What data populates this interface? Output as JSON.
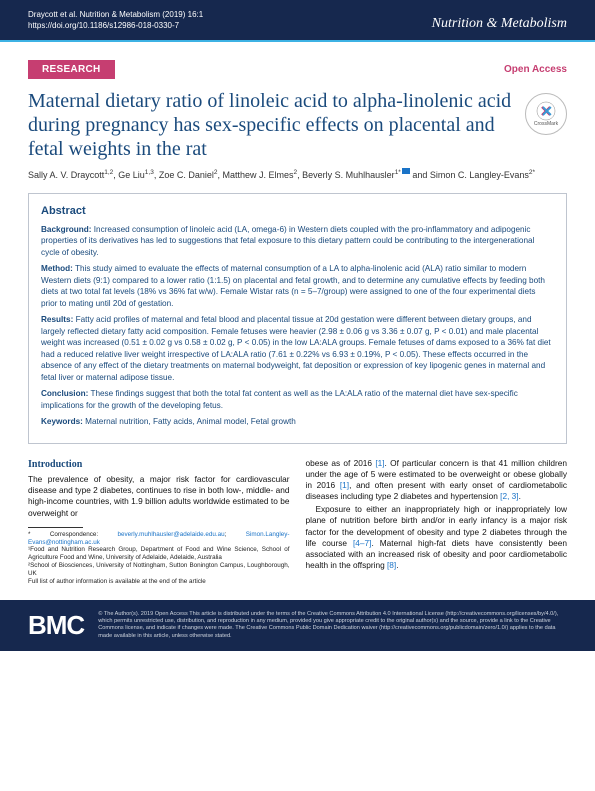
{
  "header": {
    "citation": "Draycott et al. Nutrition & Metabolism         (2019) 16:1",
    "doi": "https://doi.org/10.1186/s12986-018-0330-7",
    "journal": "Nutrition & Metabolism"
  },
  "labels": {
    "research": "RESEARCH",
    "open_access": "Open Access",
    "crossmark": "CrossMark"
  },
  "title": "Maternal dietary ratio of linoleic acid to alpha-linolenic acid during pregnancy has sex-specific effects on placental and fetal weights in the rat",
  "authors_html": "Sally A. V. Draycott<sup>1,2</sup>, Ge Liu<sup>1,3</sup>, Zoe C. Daniel<sup>2</sup>, Matthew J. Elmes<sup>2</sup>, Beverly S. Muhlhausler<sup>1*</sup><span class='corr-icon'></span> and Simon C. Langley-Evans<sup>2*</sup>",
  "abstract": {
    "heading": "Abstract",
    "background_label": "Background:",
    "background": " Increased consumption of linoleic acid (LA, omega-6) in Western diets coupled with the pro-inflammatory and adipogenic properties of its derivatives has led to suggestions that fetal exposure to this dietary pattern could be contributing to the intergenerational cycle of obesity.",
    "method_label": "Method:",
    "method": " This study aimed to evaluate the effects of maternal consumption of a LA to alpha-linolenic acid (ALA) ratio similar to modern Western diets (9:1) compared to a lower ratio (1:1.5) on placental and fetal growth, and to determine any cumulative effects by feeding both diets at two total fat levels (18% vs 36% fat w/w). Female Wistar rats (n = 5–7/group) were assigned to one of the four experimental diets prior to mating until 20d of gestation.",
    "results_label": "Results:",
    "results": " Fatty acid profiles of maternal and fetal blood and placental tissue at 20d gestation were different between dietary groups, and largely reflected dietary fatty acid composition. Female fetuses were heavier (2.98 ± 0.06 g vs 3.36 ± 0.07 g, P < 0.01) and male placental weight was increased (0.51 ± 0.02 g vs 0.58 ± 0.02 g, P < 0.05) in the low LA:ALA groups. Female fetuses of dams exposed to a 36% fat diet had a reduced relative liver weight irrespective of LA:ALA ratio (7.61 ± 0.22% vs 6.93 ± 0.19%, P < 0.05). These effects occurred in the absence of any effect of the dietary treatments on maternal bodyweight, fat deposition or expression of key lipogenic genes in maternal and fetal liver or maternal adipose tissue.",
    "conclusion_label": "Conclusion:",
    "conclusion": " These findings suggest that both the total fat content as well as the LA:ALA ratio of the maternal diet have sex-specific implications for the growth of the developing fetus.",
    "keywords_label": "Keywords:",
    "keywords": " Maternal nutrition, Fatty acids, Animal model, Fetal growth"
  },
  "intro": {
    "heading": "Introduction",
    "col1": "The prevalence of obesity, a major risk factor for cardiovascular disease and type 2 diabetes, continues to rise in both low-, middle- and high-income countries, with 1.9 billion adults worldwide estimated to be overweight or",
    "col2a": "obese as of 2016 ",
    "ref1": "[1]",
    "col2b": ". Of particular concern is that 41 million children under the age of 5 were estimated to be overweight or obese globally in 2016 ",
    "ref1b": "[1]",
    "col2c": ", and often present with early onset of cardiometabolic diseases including type 2 diabetes and hypertension ",
    "ref23": "[2, 3]",
    "col2d": ".",
    "col2e": "Exposure to either an inappropriately high or inappropriately low plane of nutrition before birth and/or in early infancy is a major risk factor for the development of obesity and type 2 diabetes through the life course ",
    "ref47": "[4–7]",
    "col2f": ". Maternal high-fat diets have consistently been associated with an increased risk of obesity and poor cardiometabolic health in the offspring ",
    "ref8": "[8]",
    "col2g": "."
  },
  "footnotes": {
    "corr": "* Correspondence: ",
    "email1": "beverly.muhlhausler@adelaide.edu.au",
    "sep": "; ",
    "email2": "Simon.Langley-Evans@nottingham.ac.uk",
    "aff1": "¹Food and Nutrition Research Group, Department of Food and Wine Science, School of Agriculture Food and Wine, University of Adelaide, Adelaide, Australia",
    "aff2": "²School of Biosciences, University of Nottingham, Sutton Bonington Campus, Loughborough, UK",
    "full": "Full list of author information is available at the end of the article"
  },
  "footer": {
    "logo": "BMC",
    "license": "© The Author(s). 2019 Open Access This article is distributed under the terms of the Creative Commons Attribution 4.0 International License (http://creativecommons.org/licenses/by/4.0/), which permits unrestricted use, distribution, and reproduction in any medium, provided you give appropriate credit to the original author(s) and the source, provide a link to the Creative Commons license, and indicate if changes were made. The Creative Commons Public Domain Dedication waiver (http://creativecommons.org/publicdomain/zero/1.0/) applies to the data made available in this article, unless otherwise stated."
  },
  "colors": {
    "header_bg": "#16284E",
    "accent_pink": "#c63e71",
    "title_blue": "#1a4a7c",
    "link_blue": "#1a73c7",
    "header_border": "#3db2e4"
  }
}
